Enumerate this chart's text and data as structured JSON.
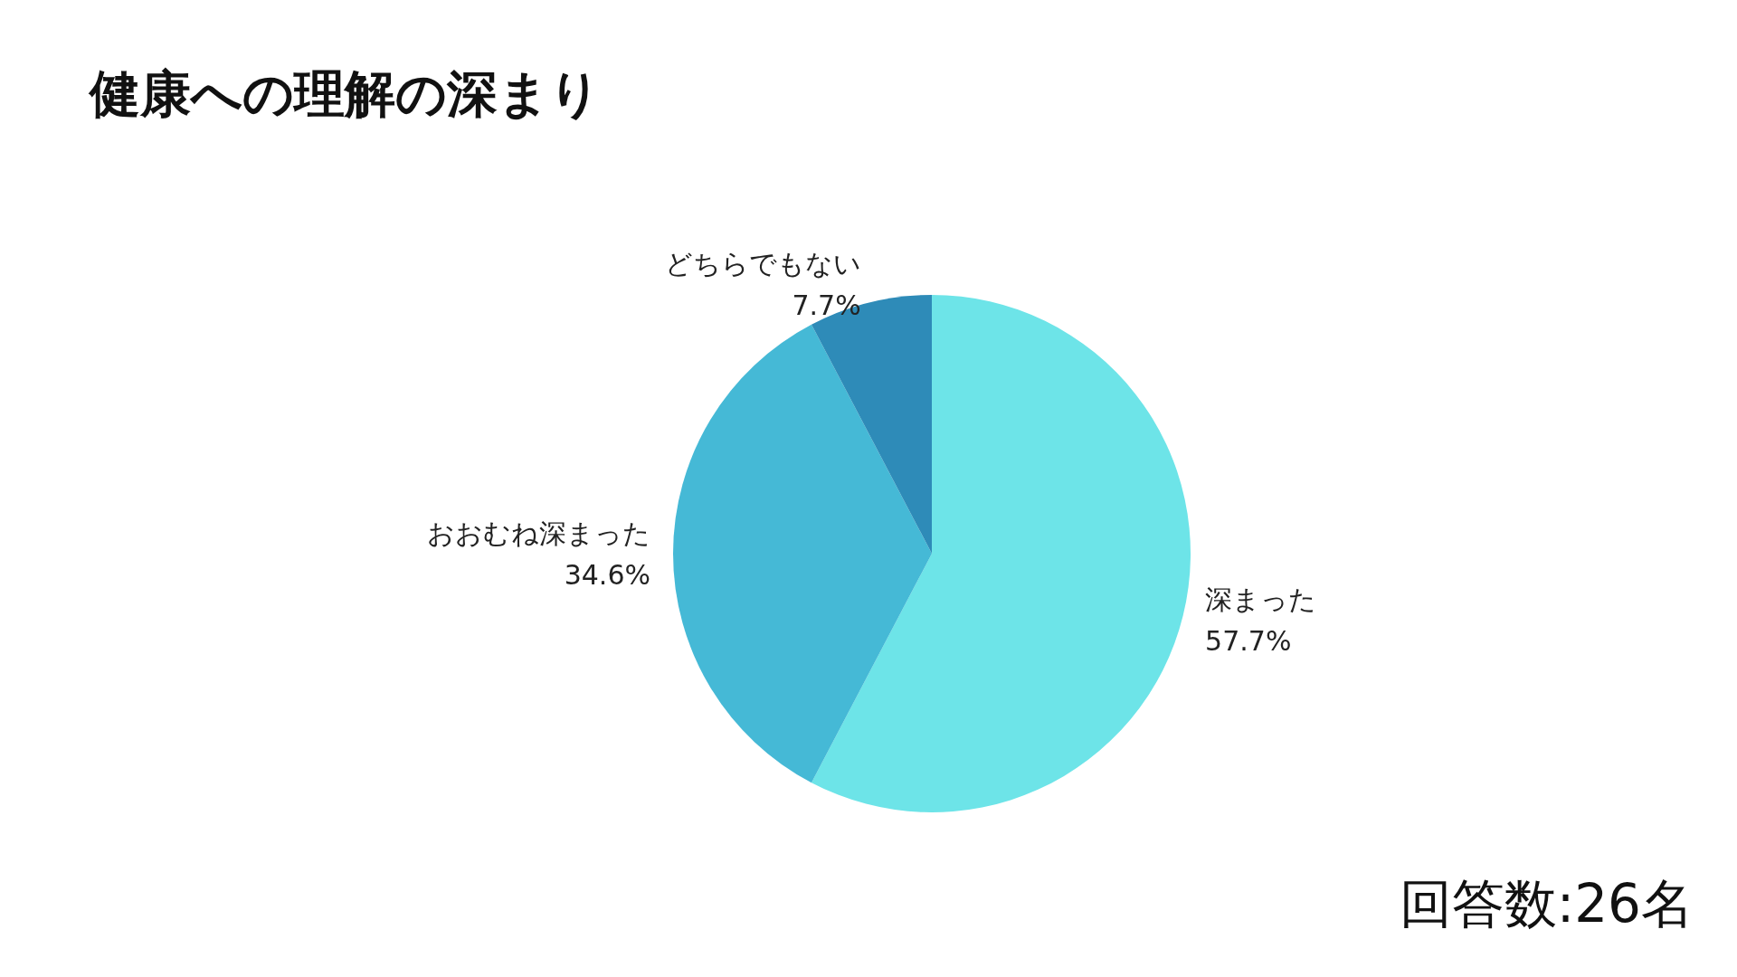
{
  "chart_data": {
    "type": "pie",
    "title": "健康への理解の深まり",
    "categories": [
      "深まった",
      "おおむね深まった",
      "どちらでもない"
    ],
    "values": [
      57.7,
      34.6,
      7.7
    ],
    "value_labels": [
      "57.7%",
      "34.6%",
      "7.7%"
    ],
    "colors": [
      "#6de4e8",
      "#45b9d6",
      "#2e8bb8"
    ],
    "annotations": [
      "回答数:26名"
    ],
    "legend": false
  }
}
